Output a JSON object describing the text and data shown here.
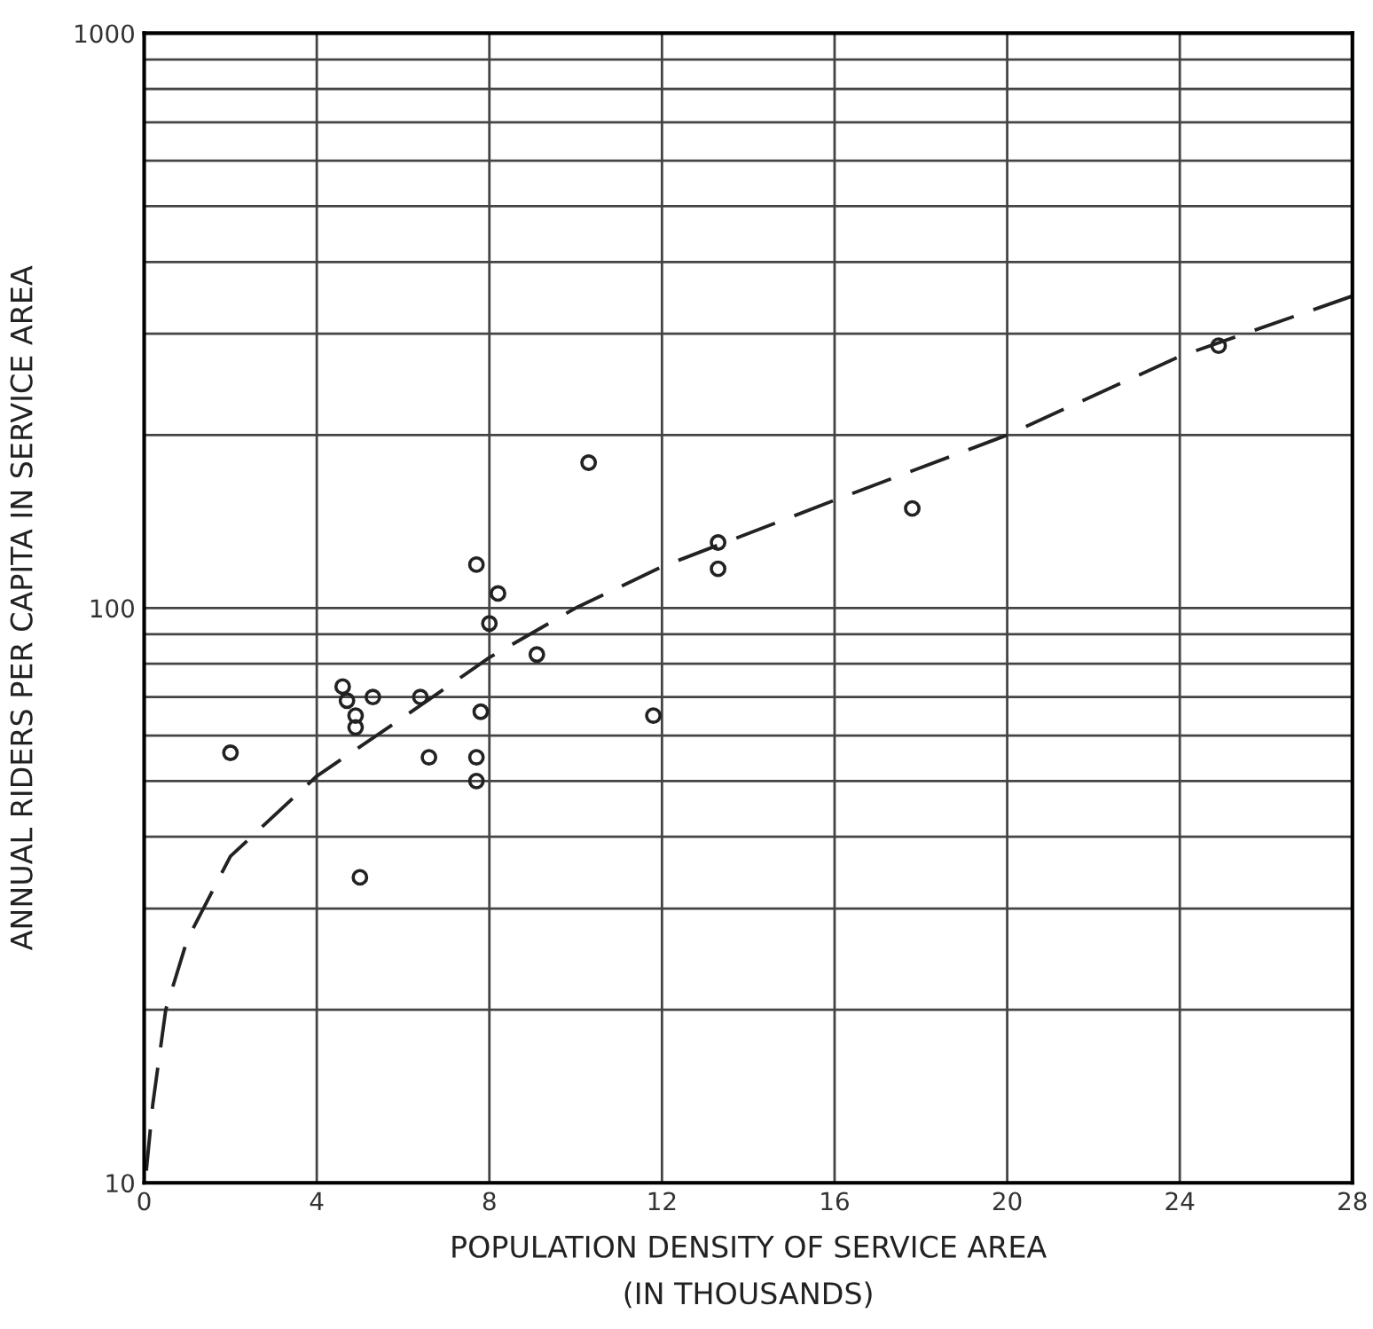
{
  "chart_data": {
    "type": "scatter",
    "xlabel": "POPULATION DENSITY OF SERVICE AREA\n(IN THOUSANDS)",
    "ylabel": "ANNUAL RIDERS PER CAPITA IN SERVICE AREA",
    "log": "y",
    "grid": true,
    "xlim": [
      0,
      28
    ],
    "xticks": [
      0,
      4,
      8,
      12,
      16,
      20,
      24,
      28
    ],
    "ylim": [
      10,
      1000
    ],
    "yticks": [
      10,
      {
        "value": 20,
        "label": null
      },
      {
        "value": 30,
        "label": null
      },
      {
        "value": 40,
        "label": null
      },
      {
        "value": 50,
        "label": null
      },
      {
        "value": 60,
        "label": null
      },
      {
        "value": 70,
        "label": null
      },
      {
        "value": 80,
        "label": null
      },
      {
        "value": 90,
        "label": null
      },
      100,
      {
        "value": 200,
        "label": null
      },
      {
        "value": 300,
        "label": null
      },
      {
        "value": 400,
        "label": null
      },
      {
        "value": 500,
        "label": null
      },
      {
        "value": 600,
        "label": null
      },
      {
        "value": 700,
        "label": null
      },
      {
        "value": 800,
        "label": null
      },
      {
        "value": 900,
        "label": null
      },
      1000
    ],
    "series": [
      {
        "color": "#222222",
        "marker": "circle",
        "x": [
          2.0,
          4.6,
          4.7,
          4.9,
          4.9,
          5.3,
          5.0,
          6.4,
          6.6,
          7.7,
          8.2,
          8.0,
          9.1,
          7.8,
          7.7,
          7.7,
          10.3,
          11.8,
          13.3,
          13.3,
          17.8,
          24.9
        ],
        "values": [
          56,
          73,
          69,
          65,
          62,
          70,
          34,
          70,
          55,
          119,
          106,
          94,
          83,
          66,
          55,
          50,
          179,
          65,
          130,
          117,
          149,
          286
        ]
      },
      {
        "type": "line",
        "color": "#222222",
        "line_style": "dashed",
        "marker": "none",
        "x": [
          0.05,
          0.2,
          0.5,
          1,
          2,
          4,
          6,
          8,
          10,
          12,
          16,
          20,
          24,
          28
        ],
        "values": [
          10.5,
          13.7,
          20,
          26.5,
          37,
          51,
          64.5,
          82,
          100,
          118,
          154,
          200,
          274,
          349
        ]
      }
    ]
  }
}
